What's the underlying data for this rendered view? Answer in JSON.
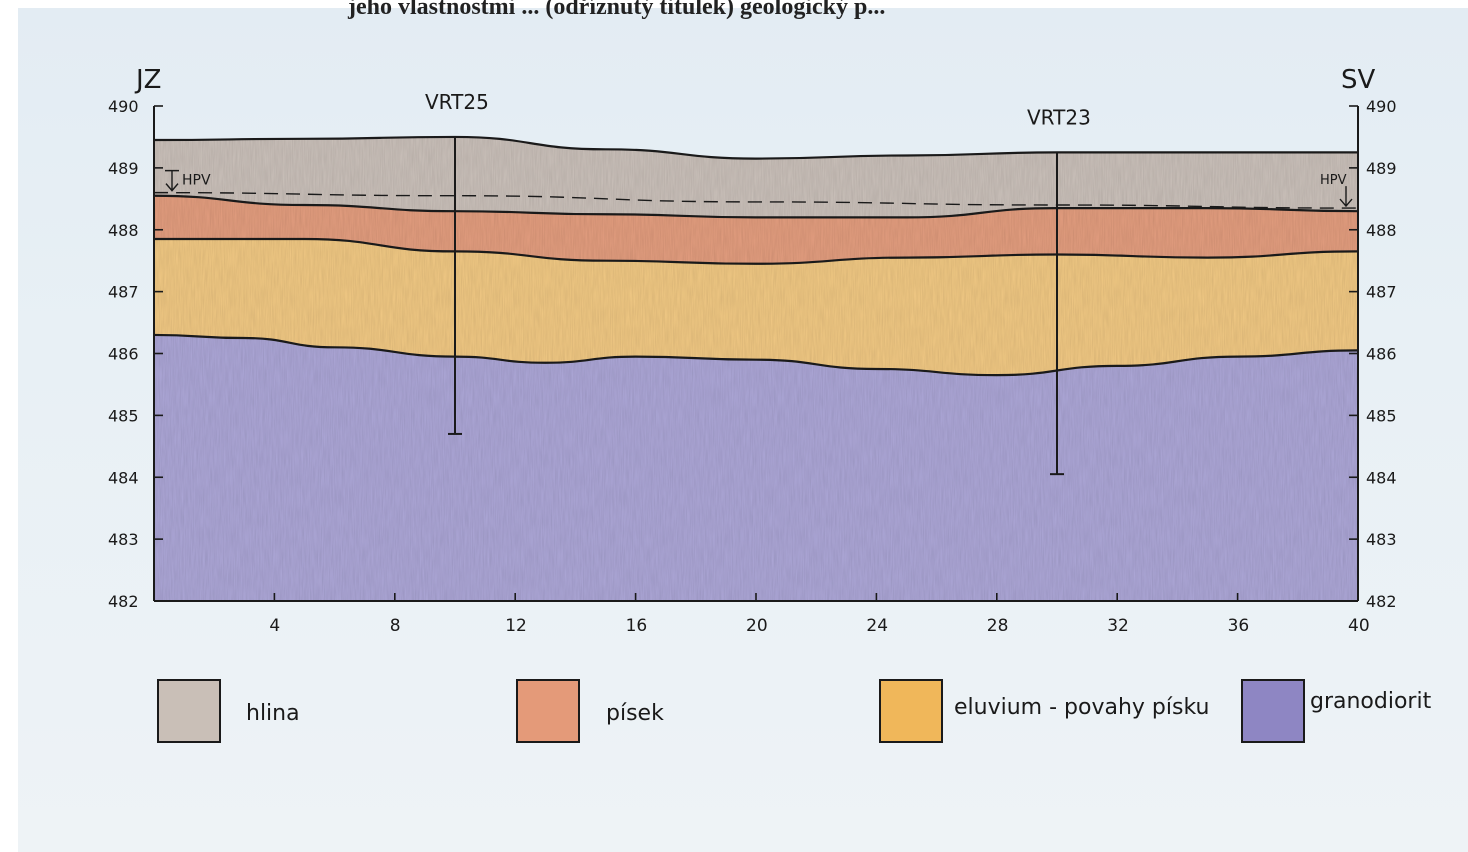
{
  "header_text": "jeho vlastnostmi ... (odříznutý titulek) geologický p...",
  "left_direction": "JZ",
  "right_direction": "SV",
  "hpv_left": "HPV",
  "hpv_right": "HPV",
  "chart_data": {
    "type": "area",
    "title": "",
    "xlabel": "",
    "ylabel": "",
    "xlim": [
      0,
      40
    ],
    "ylim": [
      482,
      490
    ],
    "x_ticks": [
      "4",
      "8",
      "12",
      "16",
      "20",
      "24",
      "28",
      "32",
      "36",
      "40"
    ],
    "y_ticks_left": [
      "490",
      "489",
      "488",
      "487",
      "486",
      "485",
      "484",
      "483",
      "482"
    ],
    "y_ticks_right": [
      "490",
      "489",
      "488",
      "487",
      "486",
      "485",
      "484",
      "483",
      "482"
    ],
    "surface": {
      "x": [
        0,
        5,
        10,
        15,
        20,
        25,
        30,
        35,
        40
      ],
      "y": [
        489.45,
        489.47,
        489.5,
        489.3,
        489.15,
        489.2,
        489.25,
        489.25,
        489.25
      ]
    },
    "hpv_level": {
      "x": [
        0,
        10,
        20,
        30,
        40
      ],
      "y": [
        488.6,
        488.55,
        488.45,
        488.4,
        488.35
      ]
    },
    "boundaries": [
      {
        "name": "hlina/pisek",
        "x": [
          0,
          5,
          10,
          15,
          20,
          25,
          30,
          35,
          40
        ],
        "y": [
          488.55,
          488.4,
          488.3,
          488.25,
          488.2,
          488.2,
          488.35,
          488.35,
          488.3
        ]
      },
      {
        "name": "pisek/eluvium",
        "x": [
          0,
          5,
          10,
          15,
          20,
          25,
          30,
          35,
          40
        ],
        "y": [
          487.85,
          487.85,
          487.65,
          487.5,
          487.45,
          487.55,
          487.6,
          487.55,
          487.65
        ]
      },
      {
        "name": "eluvium/granodiorit",
        "x": [
          0,
          3,
          6,
          10,
          13,
          16,
          20,
          24,
          28,
          32,
          36,
          40
        ],
        "y": [
          486.3,
          486.25,
          486.1,
          485.95,
          485.85,
          485.95,
          485.9,
          485.75,
          485.65,
          485.8,
          485.95,
          486.05
        ]
      }
    ],
    "boreholes": [
      {
        "label": "VRT25",
        "x": 10,
        "top": 489.5,
        "bottom": 484.7
      },
      {
        "label": "VRT23",
        "x": 30,
        "top": 489.25,
        "bottom": 484.05
      }
    ]
  },
  "legend": [
    {
      "label": "hlina",
      "color": "#c9bfb7"
    },
    {
      "label": "písek",
      "color": "#e49a79"
    },
    {
      "label": "eluvium - povahy písku",
      "color": "#f0b75a"
    },
    {
      "label": "granodiorit",
      "color": "#8e86c3"
    }
  ],
  "layer_colors": {
    "hlina": "#c9bfb7",
    "pisek": "#e49a79",
    "eluvium": "#f2c77e",
    "granodiorit": "#aaa3d6"
  }
}
